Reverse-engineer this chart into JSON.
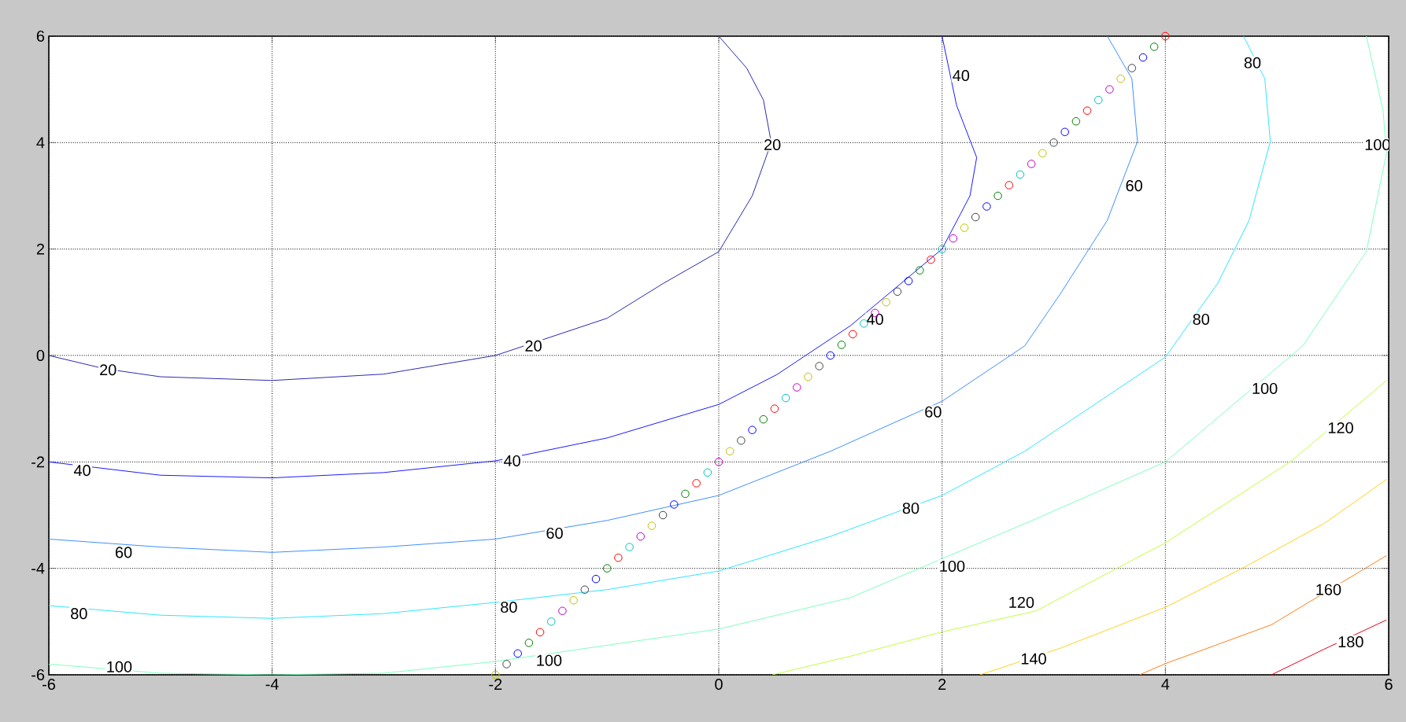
{
  "chart_data": {
    "type": "line",
    "xlim": [
      -6,
      6
    ],
    "ylim": [
      -6,
      6
    ],
    "xticks": [
      -6,
      -4,
      -2,
      0,
      2,
      4,
      6
    ],
    "yticks": [
      -6,
      -4,
      -2,
      0,
      2,
      4,
      6
    ],
    "grid": true,
    "line_style": "solid",
    "series": [
      {
        "type": "line",
        "color": "#2a2ab0",
        "x": [
          -6,
          -5.5,
          -5,
          -4,
          -3,
          -2,
          -1,
          -0.5,
          0,
          0.3,
          0.47,
          0.4,
          0.25,
          0
        ],
        "values": [
          0,
          -0.25,
          -0.4,
          -0.47,
          -0.35,
          0,
          0.7,
          1.35,
          1.95,
          3,
          4,
          4.8,
          5.4,
          6
        ]
      },
      {
        "type": "line",
        "color": "#1a1aff",
        "x": [
          -6,
          -5,
          -4,
          -3,
          -2,
          -1,
          0,
          0.52,
          1.18,
          2,
          2.25,
          2.31,
          2.13,
          2
        ],
        "values": [
          -2,
          -2.25,
          -2.3,
          -2.2,
          -1.98,
          -1.55,
          -0.92,
          -0.36,
          0.56,
          2,
          3,
          3.72,
          4.7,
          6
        ]
      },
      {
        "type": "line",
        "color": "#3f8fff",
        "x": [
          -6,
          -5,
          -4,
          -3,
          -2,
          -1,
          0,
          1,
          2,
          2.74,
          3.06,
          3.48,
          3.75,
          3.7,
          3.48
        ],
        "values": [
          -3.45,
          -3.6,
          -3.7,
          -3.6,
          -3.45,
          -3.1,
          -2.63,
          -1.8,
          -0.86,
          0.18,
          1.16,
          2.54,
          4.02,
          5.2,
          6
        ]
      },
      {
        "type": "line",
        "color": "#2fe6ff",
        "x": [
          -6,
          -5,
          -4,
          -3,
          -2,
          -1,
          0,
          1,
          2,
          2.74,
          4,
          4.47,
          4.75,
          4.94,
          4.89,
          4.7
        ],
        "values": [
          -4.7,
          -4.88,
          -4.94,
          -4.85,
          -4.64,
          -4.4,
          -4.05,
          -3.4,
          -2.63,
          -1.8,
          -0.03,
          1.36,
          2.54,
          4.02,
          5.2,
          6
        ]
      },
      {
        "type": "line",
        "color": "#7fffbf",
        "x": [
          -6,
          -5,
          -4,
          -3,
          -2,
          0,
          1.18,
          2.84,
          4,
          5.23,
          5.8,
          5.98,
          5.95,
          5.8
        ],
        "values": [
          -5.8,
          -5.97,
          -6,
          -5.97,
          -5.75,
          -5.14,
          -4.55,
          -3.07,
          -2,
          0.18,
          1.95,
          3.8,
          4.6,
          6
        ]
      },
      {
        "type": "line",
        "color": "#bfff3f",
        "x": [
          0.48,
          1.18,
          1.99,
          2.84,
          4,
          5.13,
          5.98
        ],
        "values": [
          -6,
          -5.65,
          -5.2,
          -4.8,
          -3.52,
          -1.98,
          -0.47
        ]
      },
      {
        "type": "line",
        "color": "#ffd21a",
        "x": [
          2.34,
          3.06,
          4,
          4.67,
          5.42,
          5.98
        ],
        "values": [
          -6,
          -5.5,
          -4.73,
          -4.02,
          -3.16,
          -2.33
        ]
      },
      {
        "type": "line",
        "color": "#ff7f1a",
        "x": [
          3.77,
          4,
          4.95,
          5.98
        ],
        "values": [
          -6,
          -5.79,
          -5.06,
          -3.76
        ]
      },
      {
        "type": "line",
        "color": "#e6001a",
        "x": [
          4.95,
          5.42,
          5.98
        ],
        "values": [
          -6,
          -5.52,
          -4.97
        ]
      },
      {
        "type": "scatter",
        "marker": "circle",
        "x": [
          -2,
          -1.9,
          -1.8,
          -1.7,
          -1.6,
          -1.5,
          -1.4,
          -1.3,
          -1.2,
          -1.1,
          -1,
          -0.9,
          -0.8,
          -0.7,
          -0.6,
          -0.5,
          -0.4,
          -0.3,
          -0.2,
          -0.1,
          0,
          0.1,
          0.2,
          0.3,
          0.4,
          0.5,
          0.6,
          0.7,
          0.8,
          0.9,
          1,
          1.1,
          1.2,
          1.3,
          1.4,
          1.5,
          1.6,
          1.7,
          1.8,
          1.9,
          2,
          2.1,
          2.2,
          2.3,
          2.4,
          2.5,
          2.6,
          2.7,
          2.8,
          2.9,
          3,
          3.1,
          3.2,
          3.3,
          3.4,
          3.5,
          3.6,
          3.7,
          3.8,
          3.9,
          4
        ],
        "values": [
          -6,
          -5.8,
          -5.6,
          -5.4,
          -5.2,
          -5,
          -4.8,
          -4.6,
          -4.4,
          -4.2,
          -4,
          -3.8,
          -3.6,
          -3.4,
          -3.2,
          -3,
          -2.8,
          -2.6,
          -2.4,
          -2.2,
          -2,
          -1.8,
          -1.6,
          -1.4,
          -1.2,
          -1,
          -0.8,
          -0.6,
          -0.4,
          -0.2,
          0,
          0.2,
          0.4,
          0.6,
          0.8,
          1,
          1.2,
          1.4,
          1.6,
          1.8,
          2,
          2.2,
          2.4,
          2.6,
          2.8,
          3,
          3.2,
          3.4,
          3.6,
          3.8,
          4,
          4.2,
          4.4,
          4.6,
          4.8,
          5,
          5.2,
          5.4,
          5.6,
          5.8,
          6
        ],
        "colors": [
          "#bfbf00",
          "#404040",
          "#0000ff",
          "#008000",
          "#ff0000",
          "#00bfbf",
          "#bf00bf",
          "#bfbf00",
          "#404040",
          "#0000ff",
          "#008000",
          "#ff0000",
          "#00bfbf",
          "#bf00bf",
          "#bfbf00",
          "#404040",
          "#0000ff",
          "#008000",
          "#ff0000",
          "#00bfbf",
          "#bf00bf",
          "#bfbf00",
          "#404040",
          "#0000ff",
          "#008000",
          "#ff0000",
          "#00bfbf",
          "#bf00bf",
          "#bfbf00",
          "#404040",
          "#0000ff",
          "#008000",
          "#ff0000",
          "#00bfbf",
          "#bf00bf",
          "#bfbf00",
          "#404040",
          "#0000ff",
          "#008000",
          "#ff0000",
          "#00bfbf",
          "#bf00bf",
          "#bfbf00",
          "#404040",
          "#0000ff",
          "#008000",
          "#ff0000",
          "#00bfbf",
          "#bf00bf",
          "#bfbf00",
          "#404040",
          "#0000ff",
          "#008000",
          "#ff0000",
          "#00bfbf",
          "#bf00bf",
          "#bfbf00",
          "#404040",
          "#0000ff",
          "#008000",
          "#ff0000"
        ]
      }
    ],
    "annotations": [
      {
        "text": "20",
        "x": -5.47,
        "y": -0.27
      },
      {
        "text": "20",
        "x": -1.66,
        "y": 0.18
      },
      {
        "text": "20",
        "x": 0.48,
        "y": 3.96
      },
      {
        "text": "40",
        "x": -5.7,
        "y": -2.16
      },
      {
        "text": "40",
        "x": -1.85,
        "y": -1.98
      },
      {
        "text": "40",
        "x": 1.4,
        "y": 0.68
      },
      {
        "text": "40",
        "x": 2.17,
        "y": 5.26
      },
      {
        "text": "60",
        "x": -5.33,
        "y": -3.7
      },
      {
        "text": "60",
        "x": -1.47,
        "y": -3.34
      },
      {
        "text": "60",
        "x": 1.92,
        "y": -1.06
      },
      {
        "text": "60",
        "x": 3.72,
        "y": 3.19
      },
      {
        "text": "80",
        "x": -5.73,
        "y": -4.85
      },
      {
        "text": "80",
        "x": -1.88,
        "y": -4.73
      },
      {
        "text": "80",
        "x": 1.72,
        "y": -2.87
      },
      {
        "text": "80",
        "x": 4.32,
        "y": 0.68
      },
      {
        "text": "80",
        "x": 4.78,
        "y": 5.5
      },
      {
        "text": "100",
        "x": -5.37,
        "y": -5.85
      },
      {
        "text": "100",
        "x": -1.52,
        "y": -5.73
      },
      {
        "text": "100",
        "x": 2.09,
        "y": -3.96
      },
      {
        "text": "100",
        "x": 4.89,
        "y": -0.62
      },
      {
        "text": "100",
        "x": 5.9,
        "y": 3.96
      },
      {
        "text": "120",
        "x": 2.71,
        "y": -4.64
      },
      {
        "text": "120",
        "x": 5.57,
        "y": -1.36
      },
      {
        "text": "140",
        "x": 2.82,
        "y": -5.7
      },
      {
        "text": "160",
        "x": 5.46,
        "y": -4.4
      },
      {
        "text": "180",
        "x": 5.66,
        "y": -5.38
      }
    ]
  }
}
